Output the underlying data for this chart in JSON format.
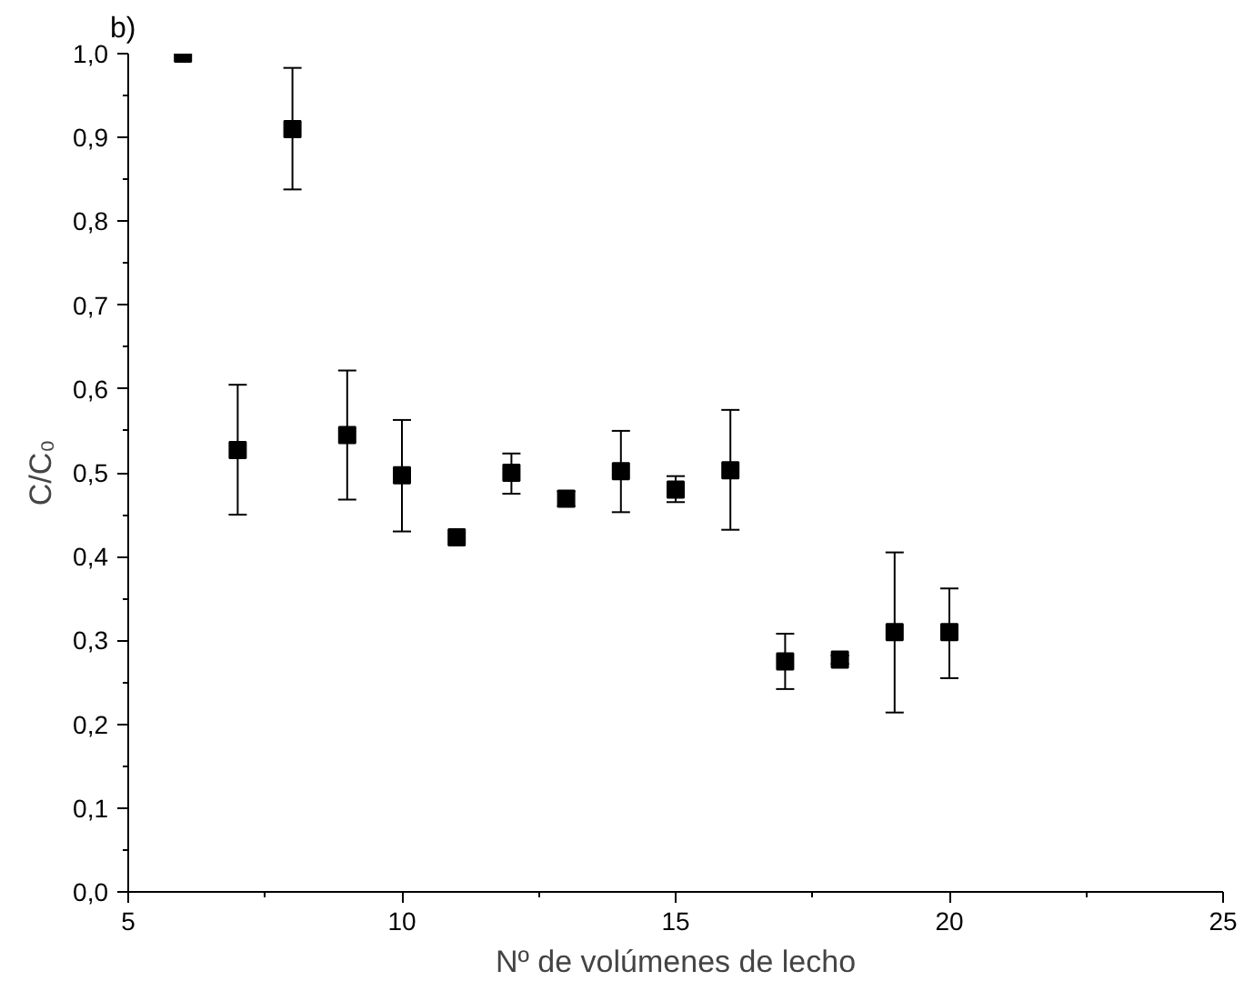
{
  "chart_data": {
    "type": "scatter",
    "xlabel": "Nº de volúmenes de lecho",
    "ylabel": "C/C₀",
    "annotations": [
      "b)"
    ],
    "x": [
      6,
      7,
      8,
      9,
      10,
      11,
      12,
      13,
      14,
      15,
      16,
      17,
      18,
      19,
      20
    ],
    "values": [
      1.0,
      0.527,
      0.91,
      0.545,
      0.497,
      0.423,
      0.5,
      0.469,
      0.502,
      0.48,
      0.503,
      0.275,
      0.277,
      0.31,
      0.31
    ],
    "errors": [
      null,
      [
        0.45,
        0.605
      ],
      [
        0.838,
        0.983
      ],
      [
        0.468,
        0.622
      ],
      [
        0.43,
        0.563
      ],
      null,
      [
        0.475,
        0.523
      ],
      [
        0.46,
        0.478
      ],
      [
        0.453,
        0.55
      ],
      [
        0.465,
        0.496
      ],
      [
        0.432,
        0.575
      ],
      [
        0.242,
        0.308
      ],
      [
        0.272,
        0.282
      ],
      [
        0.214,
        0.405
      ],
      [
        0.255,
        0.362
      ]
    ],
    "color": "#000000",
    "marker": "square",
    "xlim": [
      5,
      25
    ],
    "xticks": [
      5,
      10,
      15,
      20,
      25
    ],
    "ylim": [
      0.0,
      1.0
    ],
    "yticks": [
      {
        "value": 0.0,
        "label": "0,0"
      },
      {
        "value": 0.1,
        "label": "0,1"
      },
      {
        "value": 0.2,
        "label": "0,2"
      },
      {
        "value": 0.3,
        "label": "0,3"
      },
      {
        "value": 0.4,
        "label": "0,4"
      },
      {
        "value": 0.5,
        "label": "0,5"
      },
      {
        "value": 0.6,
        "label": "0,6"
      },
      {
        "value": 0.7,
        "label": "0,7"
      },
      {
        "value": 0.8,
        "label": "0,8"
      },
      {
        "value": 0.9,
        "label": "0,9"
      },
      {
        "value": 1.0,
        "label": "1,0"
      }
    ],
    "grid": false
  }
}
